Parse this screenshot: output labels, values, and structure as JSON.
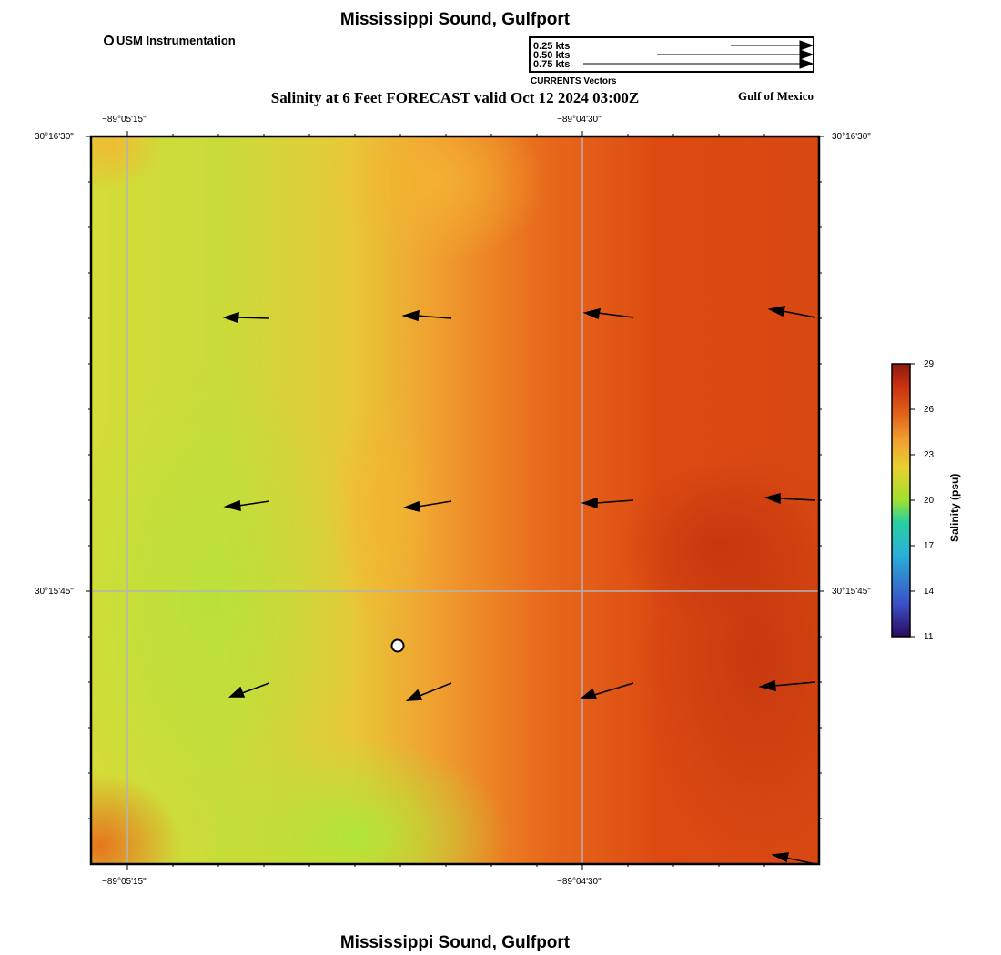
{
  "header": {
    "title": "Mississippi Sound, Gulfport",
    "subtitle": "Salinity at 6 Feet FORECAST valid Oct 12 2024 03:00Z",
    "region": "Gulf of Mexico",
    "footer_title": "Mississippi Sound, Gulfport"
  },
  "station_legend": {
    "label": "USM Instrumentation"
  },
  "vector_legend": {
    "title": "CURRENTS Vectors",
    "entries": [
      "0.25 kts",
      "0.50 kts",
      "0.75 kts"
    ]
  },
  "map": {
    "lon_labels": [
      "−89°05'15\"",
      "−89°04'30\""
    ],
    "lat_labels": [
      "30°16'30\"",
      "30°15'45\""
    ],
    "colors": {
      "frame": "#000000",
      "grid": "#b4b4b4",
      "station_fill": "#ffffff"
    }
  },
  "colorbar": {
    "title": "Salinity (psu)",
    "ticks": [
      "29",
      "26",
      "23",
      "20",
      "17",
      "14",
      "11"
    ],
    "range": [
      11,
      29
    ],
    "stops": [
      "#2a0a5e",
      "#3a50c8",
      "#2ab0d8",
      "#28d0a0",
      "#a0e030",
      "#e8d030",
      "#f0a030",
      "#e06018",
      "#c83010",
      "#8c1a10"
    ]
  }
}
